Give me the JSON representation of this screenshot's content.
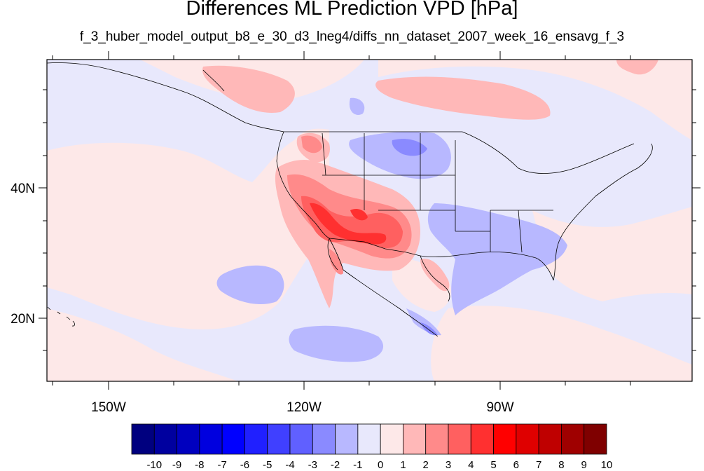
{
  "title": "Differences ML Prediction VPD [hPa]",
  "subtitle": "f_3_huber_model_output_b8_e_30_d3_lneg4/diffs_nn_dataset_2007_week_16_ensavg_f_3",
  "lat_labels": [
    "40N",
    "20N"
  ],
  "lon_labels": [
    "150W",
    "120W",
    "90W"
  ],
  "colorbar": {
    "labels": [
      "-10",
      "-9",
      "-8",
      "-7",
      "-6",
      "-5",
      "-4",
      "-3",
      "-2",
      "-1",
      "0",
      "1",
      "2",
      "3",
      "4",
      "5",
      "6",
      "7",
      "8",
      "9",
      "10"
    ],
    "colors": [
      "#00007f",
      "#00009f",
      "#0000bf",
      "#0000df",
      "#0000ff",
      "#2020ff",
      "#4040ff",
      "#6060ff",
      "#8a8aff",
      "#b8b8ff",
      "#e8e8fc",
      "#fde8e8",
      "#ffb8b8",
      "#ff8a8a",
      "#ff6060",
      "#ff3030",
      "#ff0000",
      "#df0000",
      "#bf0000",
      "#9f0000",
      "#7f0000"
    ]
  },
  "colors": {
    "background_negative": "#e8e8fc",
    "background_positive": "#fde8e8",
    "map_lines": "#000000"
  }
}
